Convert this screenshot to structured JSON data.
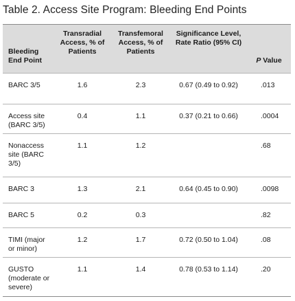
{
  "title": "Table 2.  Access Site Program: Bleeding End Points",
  "headers": {
    "end_point": "Bleeding End Point",
    "transradial": "Transradial Access, % of Patients",
    "transfemoral": "Transfemoral Access, % of Patients",
    "significance": "Significance Level, Rate Ratio (95% CI)",
    "p_letter": "P",
    "p_rest": " Value"
  },
  "rows": [
    {
      "end_point": "BARC 3/5",
      "transradial": "1.6",
      "transfemoral": "2.3",
      "significance": "0.67 (0.49 to 0.92)",
      "p_value": ".013"
    },
    {
      "end_point": "Access site (BARC 3/5)",
      "transradial": "0.4",
      "transfemoral": "1.1",
      "significance": "0.37 (0.21 to 0.66)",
      "p_value": ".0004"
    },
    {
      "end_point": "Nonaccess site (BARC 3/5)",
      "transradial": "1.1",
      "transfemoral": "1.2",
      "significance": "",
      "p_value": ".68"
    },
    {
      "end_point": "BARC 3",
      "transradial": "1.3",
      "transfemoral": "2.1",
      "significance": "0.64 (0.45 to 0.90)",
      "p_value": ".0098"
    },
    {
      "end_point": "BARC 5",
      "transradial": "0.2",
      "transfemoral": "0.3",
      "significance": "",
      "p_value": ".82"
    },
    {
      "end_point": "TIMI (major or minor)",
      "transradial": "1.2",
      "transfemoral": "1.7",
      "significance": "0.72 (0.50 to 1.04)",
      "p_value": ".08"
    },
    {
      "end_point": "GUSTO (moderate or severe)",
      "transradial": "1.1",
      "transfemoral": "1.4",
      "significance": "0.78 (0.53 to 1.14)",
      "p_value": ".20"
    }
  ]
}
